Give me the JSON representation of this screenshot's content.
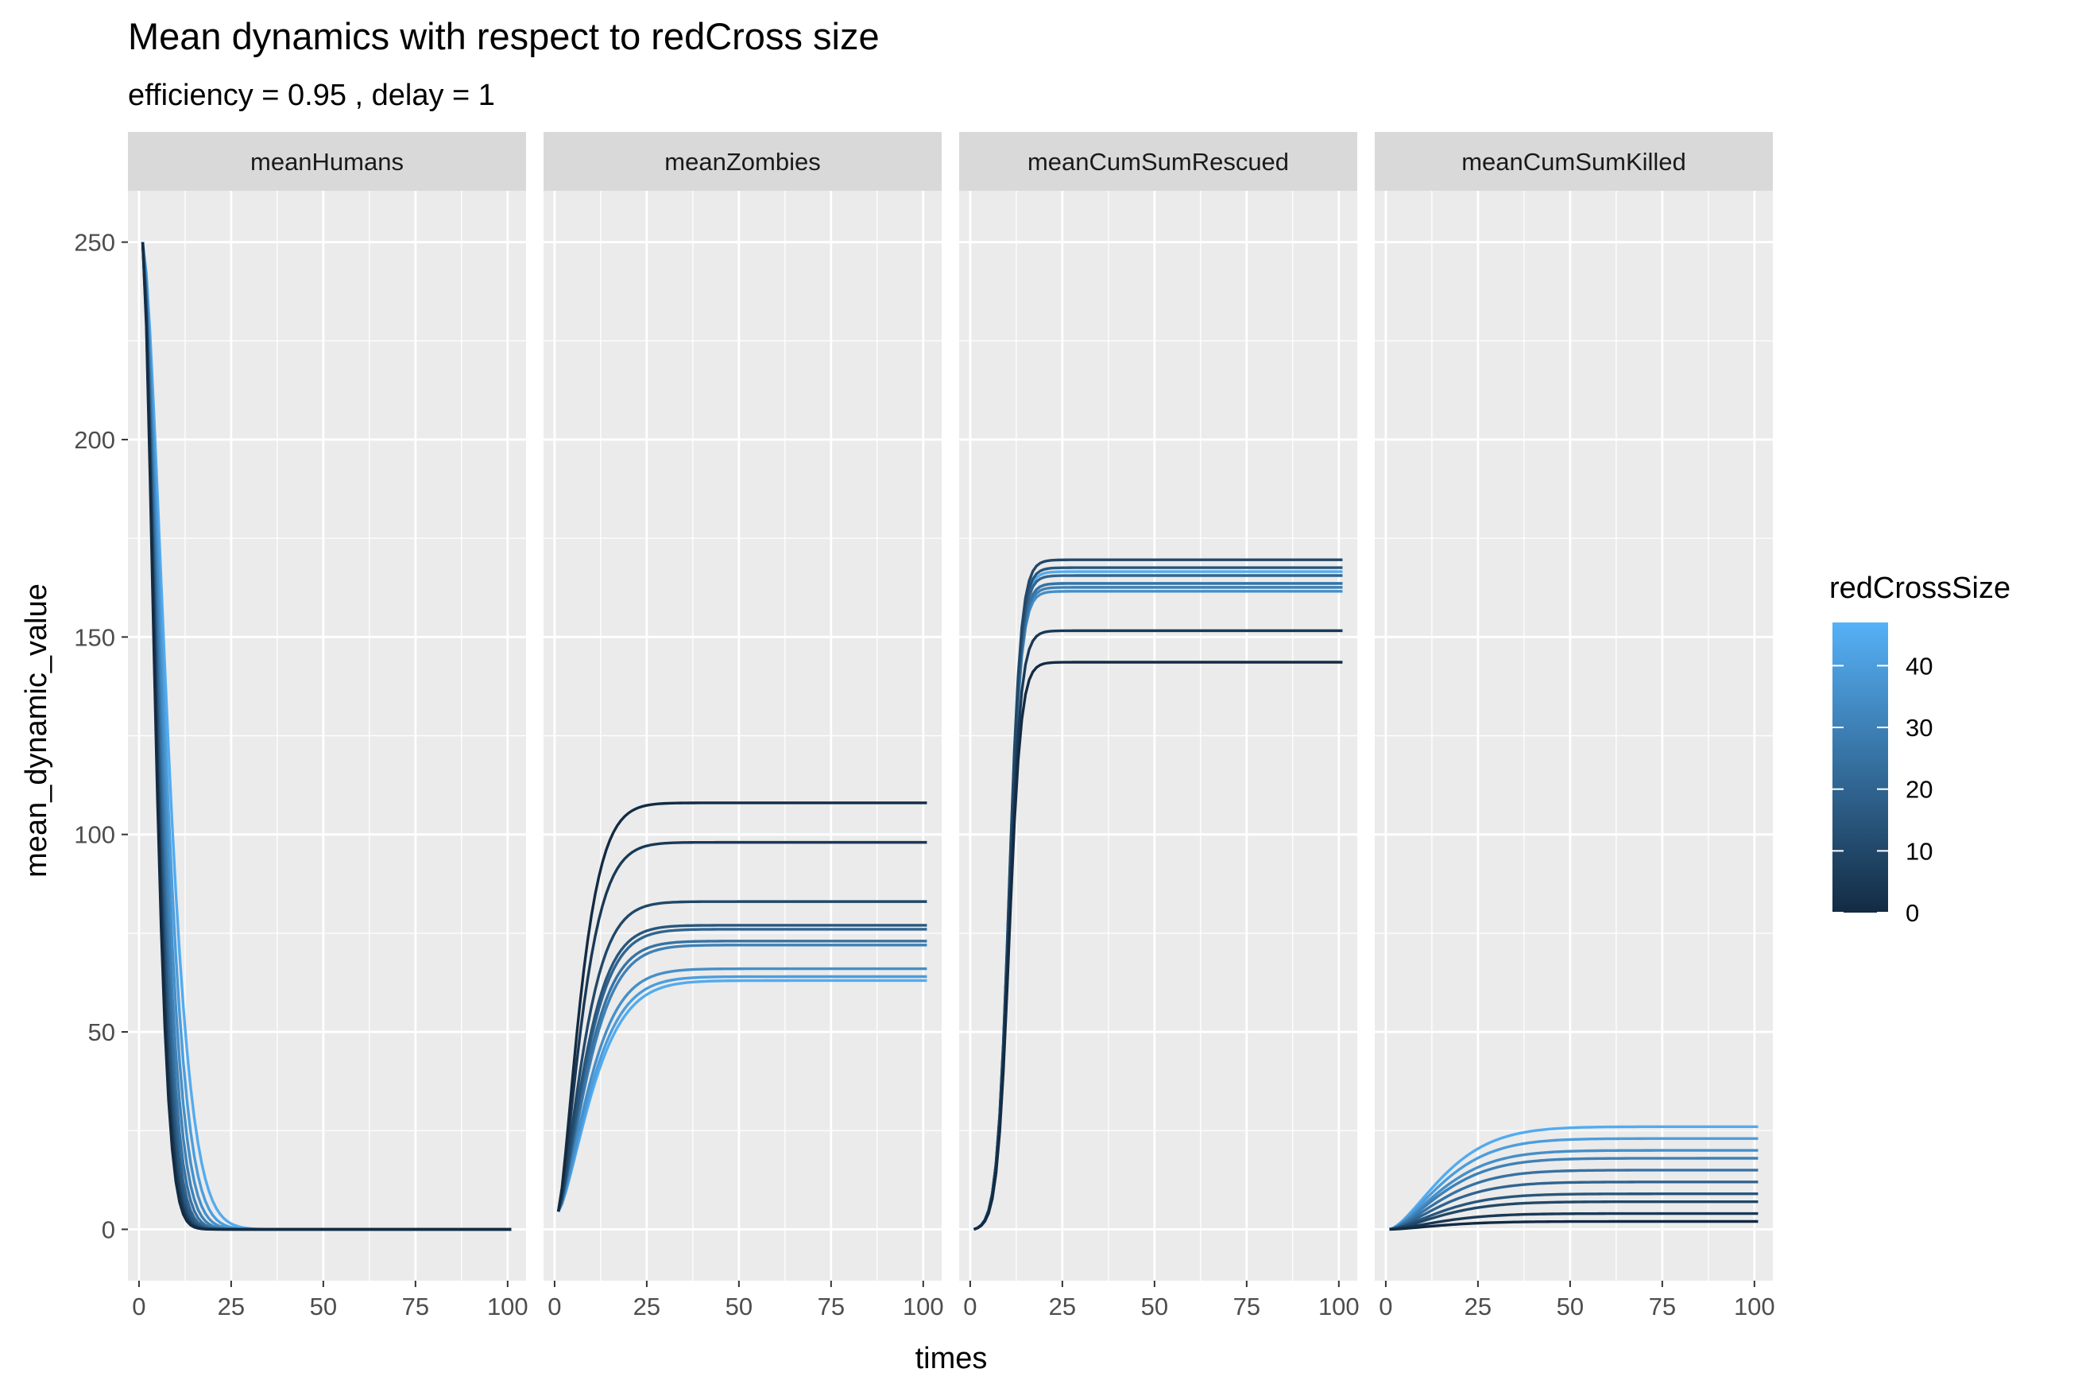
{
  "chart_data": {
    "type": "line",
    "title": "Mean dynamics with respect to redCross size",
    "subtitle": "efficiency =  0.95 , delay =  1",
    "xlabel": "times",
    "ylabel": "mean_dynamic_value",
    "xlim": [
      -3,
      105
    ],
    "ylim": [
      -13,
      263
    ],
    "x_ticks": [
      0,
      25,
      50,
      75,
      100
    ],
    "y_ticks": [
      0,
      50,
      100,
      150,
      200,
      250
    ],
    "grid": true,
    "x_range": [
      1,
      101
    ],
    "facets": [
      "meanHumans",
      "meanZombies",
      "meanCumSumRescued",
      "meanCumSumKilled"
    ],
    "legend": {
      "title": "redCrossSize",
      "type": "colorbar",
      "position": "right",
      "range": [
        0,
        47
      ],
      "ticks": [
        0,
        10,
        20,
        30,
        40
      ],
      "low_color": "#132b43",
      "high_color": "#56b1f7"
    },
    "series": [
      {
        "redCrossSize": 0,
        "facet_values": {
          "meanHumans": {
            "tau": 4.5
          },
          "meanZombies": {
            "final": 108,
            "tau": 7.5
          },
          "meanCumSumRescued": {
            "final": 144
          },
          "meanCumSumKilled": {
            "final": 2
          }
        }
      },
      {
        "redCrossSize": 5,
        "facet_values": {
          "meanHumans": {
            "tau": 4.7
          },
          "meanZombies": {
            "final": 98,
            "tau": 8.0
          },
          "meanCumSumRescued": {
            "final": 152
          },
          "meanCumSumKilled": {
            "final": 4
          }
        }
      },
      {
        "redCrossSize": 10,
        "facet_values": {
          "meanHumans": {
            "tau": 4.9
          },
          "meanZombies": {
            "final": 83,
            "tau": 8.5
          },
          "meanCumSumRescued": {
            "final": 170
          },
          "meanCumSumKilled": {
            "final": 7
          }
        }
      },
      {
        "redCrossSize": 15,
        "facet_values": {
          "meanHumans": {
            "tau": 5.2
          },
          "meanZombies": {
            "final": 77,
            "tau": 9.0
          },
          "meanCumSumRescued": {
            "final": 168
          },
          "meanCumSumKilled": {
            "final": 9
          }
        }
      },
      {
        "redCrossSize": 20,
        "facet_values": {
          "meanHumans": {
            "tau": 5.5
          },
          "meanZombies": {
            "final": 76,
            "tau": 9.3
          },
          "meanCumSumRescued": {
            "final": 166
          },
          "meanCumSumKilled": {
            "final": 12
          }
        }
      },
      {
        "redCrossSize": 25,
        "facet_values": {
          "meanHumans": {
            "tau": 5.9
          },
          "meanZombies": {
            "final": 73,
            "tau": 9.6
          },
          "meanCumSumRescued": {
            "final": 164
          },
          "meanCumSumKilled": {
            "final": 15
          }
        }
      },
      {
        "redCrossSize": 30,
        "facet_values": {
          "meanHumans": {
            "tau": 6.4
          },
          "meanZombies": {
            "final": 72,
            "tau": 10.0
          },
          "meanCumSumRescued": {
            "final": 163
          },
          "meanCumSumKilled": {
            "final": 18
          }
        }
      },
      {
        "redCrossSize": 35,
        "facet_values": {
          "meanHumans": {
            "tau": 7.0
          },
          "meanZombies": {
            "final": 66,
            "tau": 10.5
          },
          "meanCumSumRescued": {
            "final": 162
          },
          "meanCumSumKilled": {
            "final": 20
          }
        }
      },
      {
        "redCrossSize": 40,
        "facet_values": {
          "meanHumans": {
            "tau": 7.7
          },
          "meanZombies": {
            "final": 64,
            "tau": 11.0
          },
          "meanCumSumRescued": {
            "final": 164
          },
          "meanCumSumKilled": {
            "final": 23
          }
        }
      },
      {
        "redCrossSize": 45,
        "facet_values": {
          "meanHumans": {
            "tau": 8.6
          },
          "meanZombies": {
            "final": 63,
            "tau": 11.5
          },
          "meanCumSumRescued": {
            "final": 167
          },
          "meanCumSumKilled": {
            "final": 26
          }
        }
      }
    ]
  }
}
